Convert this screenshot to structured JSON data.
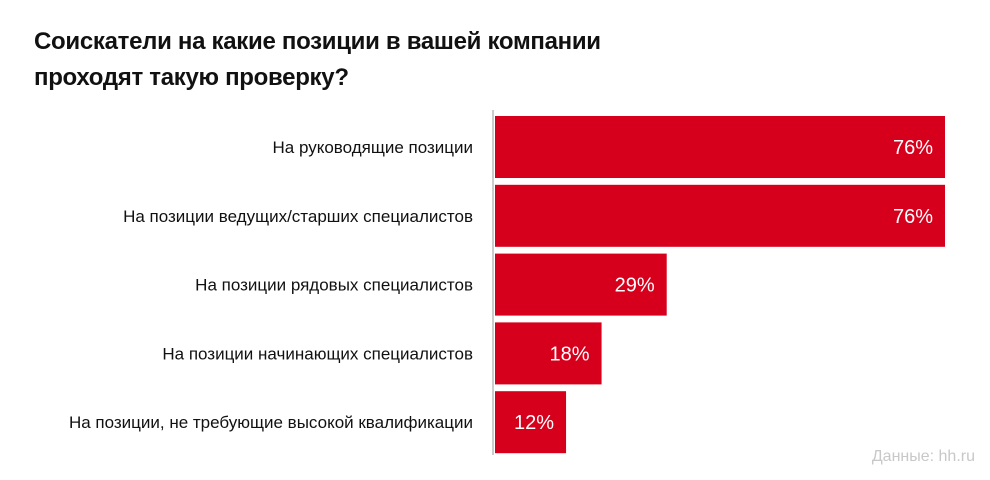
{
  "chart_data": {
    "type": "bar",
    "orientation": "horizontal",
    "title": "Соискатели на какие позиции в вашей компании проходят такую проверку?",
    "categories": [
      "На руководящие позиции",
      "На позиции ведущих/старших специалистов",
      "На позиции рядовых специалистов",
      "На позиции начинающих специалистов",
      "На позиции, не требующие высокой квалификации"
    ],
    "values": [
      76,
      76,
      29,
      18,
      12
    ],
    "data_labels": [
      "76%",
      "76%",
      "29%",
      "18%",
      "12%"
    ],
    "xlim": [
      0,
      100
    ],
    "unit": "%",
    "grid": false,
    "bar_color": "#d6001c",
    "source": "Данные: hh.ru"
  }
}
